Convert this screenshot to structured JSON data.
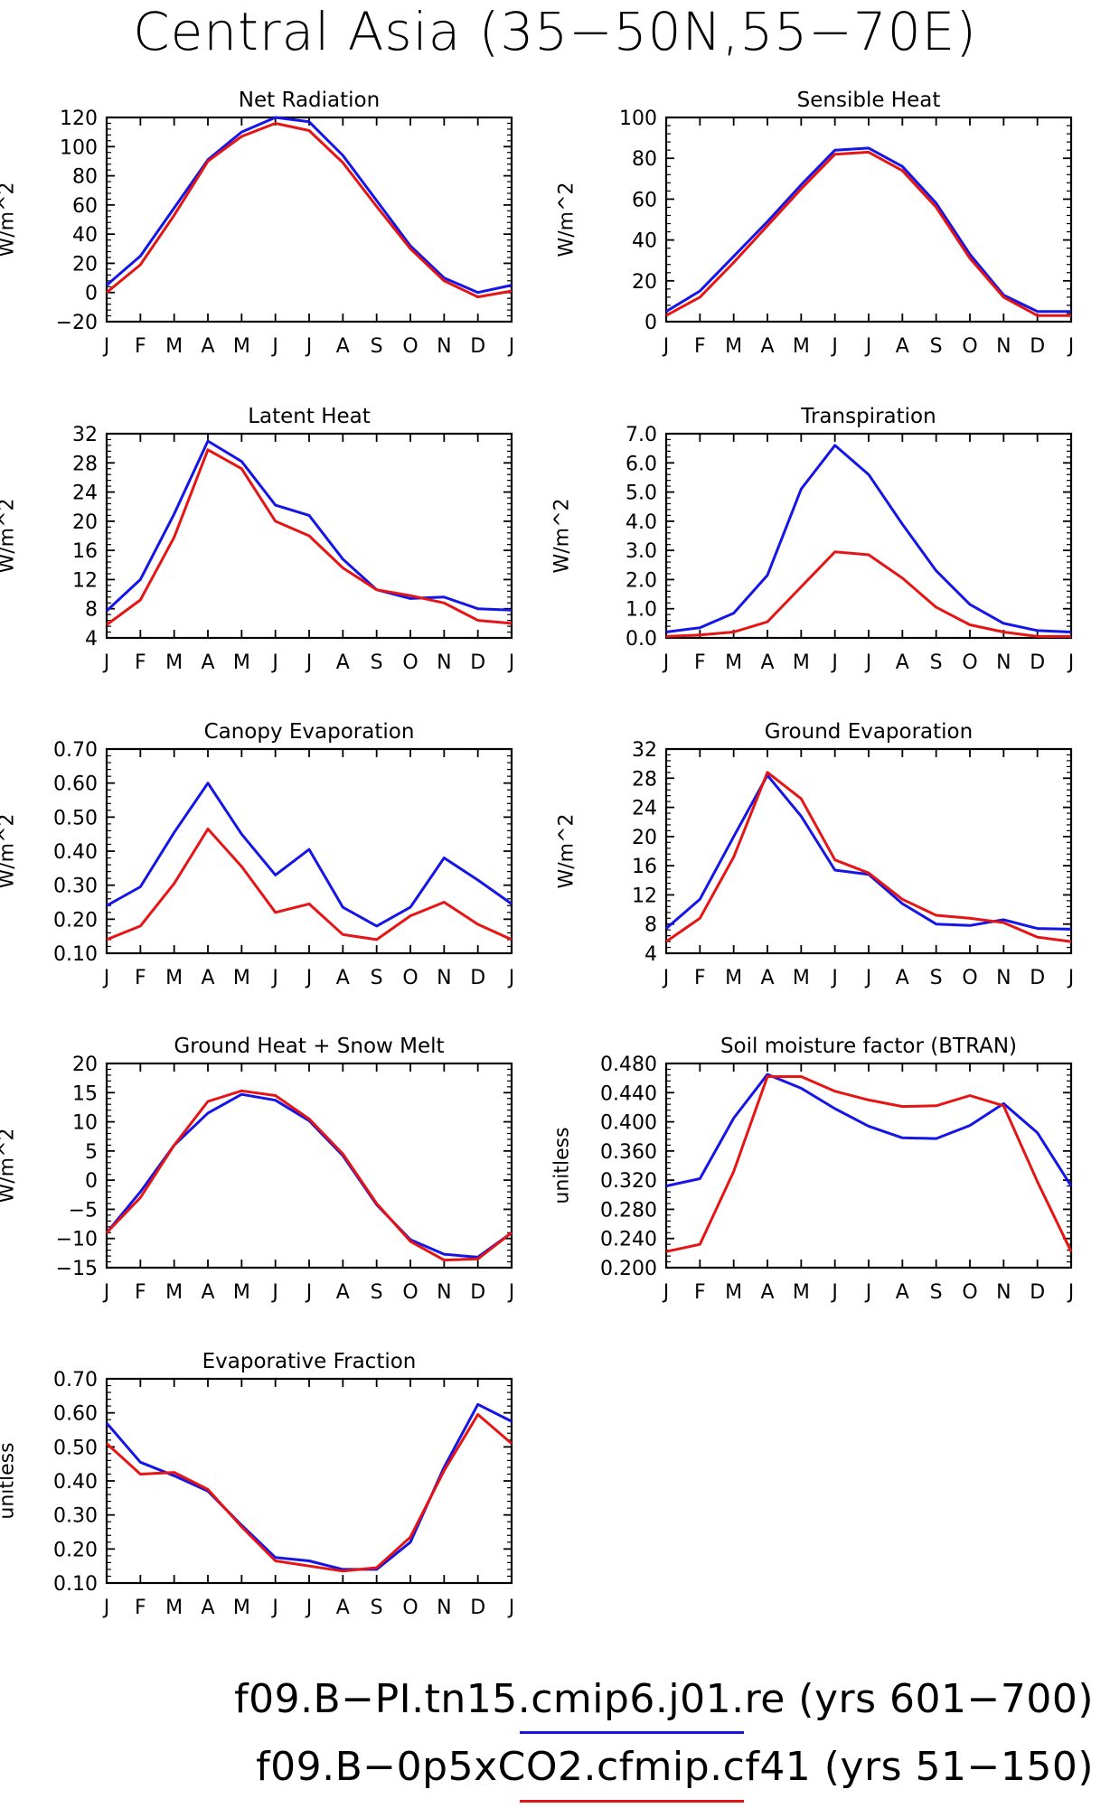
{
  "title": "Central Asia (35−50N,55−70E)",
  "months": [
    "J",
    "F",
    "M",
    "A",
    "M",
    "J",
    "J",
    "A",
    "S",
    "O",
    "N",
    "D",
    "J"
  ],
  "colors": {
    "case1": "#1515e6",
    "case2": "#e61515"
  },
  "cases": [
    {
      "label": "f09.B−PI.tn15.cmip6.j01.re (yrs 601−700)",
      "color": "#1515e6"
    },
    {
      "label": "f09.B−0p5xCO2.cfmip.cf41 (yrs 51−150)",
      "color": "#e61515"
    }
  ],
  "chart_data": [
    {
      "type": "line",
      "title": "Net Radiation",
      "ylabel": "W/m^2",
      "ylim": [
        -20,
        120
      ],
      "yticks": [
        -20,
        0,
        20,
        40,
        60,
        80,
        100,
        120
      ],
      "decimals": 0,
      "series": [
        {
          "values": [
            5,
            25,
            58,
            91,
            110,
            120,
            117,
            94,
            63,
            32,
            10,
            0,
            5
          ]
        },
        {
          "values": [
            0,
            19,
            53,
            90,
            107,
            116,
            111,
            89,
            59,
            30,
            8,
            -3,
            1
          ]
        }
      ]
    },
    {
      "type": "line",
      "title": "Sensible Heat",
      "ylabel": "W/m^2",
      "ylim": [
        0,
        100
      ],
      "yticks": [
        0,
        20,
        40,
        60,
        80,
        100
      ],
      "decimals": 0,
      "series": [
        {
          "values": [
            5,
            15,
            32,
            49,
            67,
            84,
            85,
            76,
            58,
            33,
            13,
            5,
            5
          ]
        },
        {
          "values": [
            3,
            12,
            29,
            47,
            65,
            82,
            83,
            74,
            56,
            31,
            12,
            3,
            3
          ]
        }
      ]
    },
    {
      "type": "line",
      "title": "Latent Heat",
      "ylabel": "W/m^2",
      "ylim": [
        4,
        32
      ],
      "yticks": [
        4,
        8,
        12,
        16,
        20,
        24,
        28,
        32
      ],
      "decimals": 0,
      "series": [
        {
          "values": [
            7.7,
            12,
            21,
            31,
            28.2,
            22.2,
            20.8,
            14.8,
            10.6,
            9.4,
            9.6,
            8,
            7.8
          ]
        },
        {
          "values": [
            5.8,
            9.2,
            17.8,
            29.8,
            27.2,
            20,
            18,
            13.6,
            10.6,
            9.8,
            8.8,
            6.4,
            6
          ]
        }
      ]
    },
    {
      "type": "line",
      "title": "Transpiration",
      "ylabel": "W/m^2",
      "ylim": [
        0,
        7
      ],
      "yticks": [
        0,
        1,
        2,
        3,
        4,
        5,
        6,
        7
      ],
      "decimals": 1,
      "series": [
        {
          "values": [
            0.2,
            0.35,
            0.85,
            2.15,
            5.1,
            6.6,
            5.6,
            3.9,
            2.3,
            1.15,
            0.5,
            0.25,
            0.2
          ]
        },
        {
          "values": [
            0.05,
            0.1,
            0.2,
            0.55,
            1.75,
            2.95,
            2.85,
            2.05,
            1.05,
            0.45,
            0.2,
            0.05,
            0.05
          ]
        }
      ]
    },
    {
      "type": "line",
      "title": "Canopy Evaporation",
      "ylabel": "W/m^2",
      "ylim": [
        0.1,
        0.7
      ],
      "yticks": [
        0.1,
        0.2,
        0.3,
        0.4,
        0.5,
        0.6,
        0.7
      ],
      "decimals": 2,
      "series": [
        {
          "values": [
            0.24,
            0.295,
            0.455,
            0.6,
            0.45,
            0.33,
            0.405,
            0.235,
            0.18,
            0.235,
            0.38,
            0.315,
            0.245
          ]
        },
        {
          "values": [
            0.14,
            0.18,
            0.305,
            0.465,
            0.355,
            0.22,
            0.245,
            0.155,
            0.14,
            0.21,
            0.25,
            0.185,
            0.14
          ]
        }
      ]
    },
    {
      "type": "line",
      "title": "Ground Evaporation",
      "ylabel": "W/m^2",
      "ylim": [
        4,
        32
      ],
      "yticks": [
        4,
        8,
        12,
        16,
        20,
        24,
        28,
        32
      ],
      "decimals": 0,
      "series": [
        {
          "values": [
            7.4,
            11.4,
            20,
            28.4,
            22.8,
            15.4,
            14.8,
            10.8,
            8,
            7.8,
            8.6,
            7.4,
            7.3
          ]
        },
        {
          "values": [
            5.6,
            8.8,
            17.2,
            28.8,
            25.2,
            16.8,
            15,
            11.4,
            9.2,
            8.8,
            8.2,
            6.2,
            5.6
          ]
        }
      ]
    },
    {
      "type": "line",
      "title": "Ground Heat + Snow Melt",
      "ylabel": "W/m^2",
      "ylim": [
        -15,
        20
      ],
      "yticks": [
        -15,
        -10,
        -5,
        0,
        5,
        10,
        15,
        20
      ],
      "decimals": 0,
      "series": [
        {
          "values": [
            -9,
            -2,
            6,
            11.5,
            14.7,
            13.7,
            10.2,
            4.2,
            -4.2,
            -10.2,
            -12.7,
            -13.2,
            -9
          ]
        },
        {
          "values": [
            -9,
            -3,
            6,
            13.5,
            15.3,
            14.5,
            10.5,
            4.5,
            -4,
            -10.5,
            -13.7,
            -13.5,
            -9
          ]
        }
      ]
    },
    {
      "type": "line",
      "title": "Soil moisture factor (BTRAN)",
      "ylabel": "unitless",
      "ylim": [
        0.2,
        0.48
      ],
      "yticks": [
        0.2,
        0.24,
        0.28,
        0.32,
        0.36,
        0.4,
        0.44,
        0.48
      ],
      "decimals": 3,
      "series": [
        {
          "values": [
            0.312,
            0.322,
            0.405,
            0.465,
            0.446,
            0.418,
            0.394,
            0.378,
            0.377,
            0.395,
            0.425,
            0.385,
            0.312
          ]
        },
        {
          "values": [
            0.222,
            0.232,
            0.332,
            0.462,
            0.462,
            0.442,
            0.43,
            0.421,
            0.422,
            0.436,
            0.422,
            0.318,
            0.222
          ]
        }
      ]
    },
    {
      "type": "line",
      "title": "Evaporative Fraction",
      "ylabel": "unitless",
      "ylim": [
        0.1,
        0.7
      ],
      "yticks": [
        0.1,
        0.2,
        0.3,
        0.4,
        0.5,
        0.6,
        0.7
      ],
      "decimals": 2,
      "series": [
        {
          "values": [
            0.57,
            0.455,
            0.415,
            0.37,
            0.27,
            0.175,
            0.165,
            0.14,
            0.14,
            0.22,
            0.44,
            0.625,
            0.575
          ]
        },
        {
          "values": [
            0.51,
            0.42,
            0.425,
            0.375,
            0.265,
            0.165,
            0.15,
            0.135,
            0.145,
            0.235,
            0.43,
            0.595,
            0.51
          ]
        }
      ]
    }
  ]
}
